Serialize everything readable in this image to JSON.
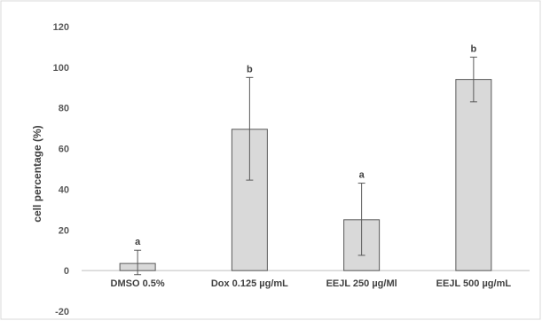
{
  "chart_data": {
    "type": "bar",
    "title": "",
    "xlabel": "",
    "ylabel": "cell percentage (%)",
    "ylim": [
      -20,
      120
    ],
    "yticks": [
      -20,
      0,
      20,
      40,
      60,
      80,
      100,
      120
    ],
    "grid": false,
    "categories": [
      "DMSO 0.5%",
      "Dox 0.125 µg/mL",
      "EEJL 250 µg/Ml",
      "EEJL 500 µg/mL"
    ],
    "values": [
      3.5,
      69.5,
      25,
      94
    ],
    "error_low": [
      -2,
      44.5,
      7.5,
      83
    ],
    "error_high": [
      10,
      95,
      43,
      105
    ],
    "annotations": [
      "a",
      "b",
      "a",
      "b"
    ],
    "colors": {
      "bar_fill": "#d9d9d9",
      "bar_stroke": "#595959",
      "axis": "#bfbfbf",
      "frame": "#d9d9d9"
    }
  }
}
